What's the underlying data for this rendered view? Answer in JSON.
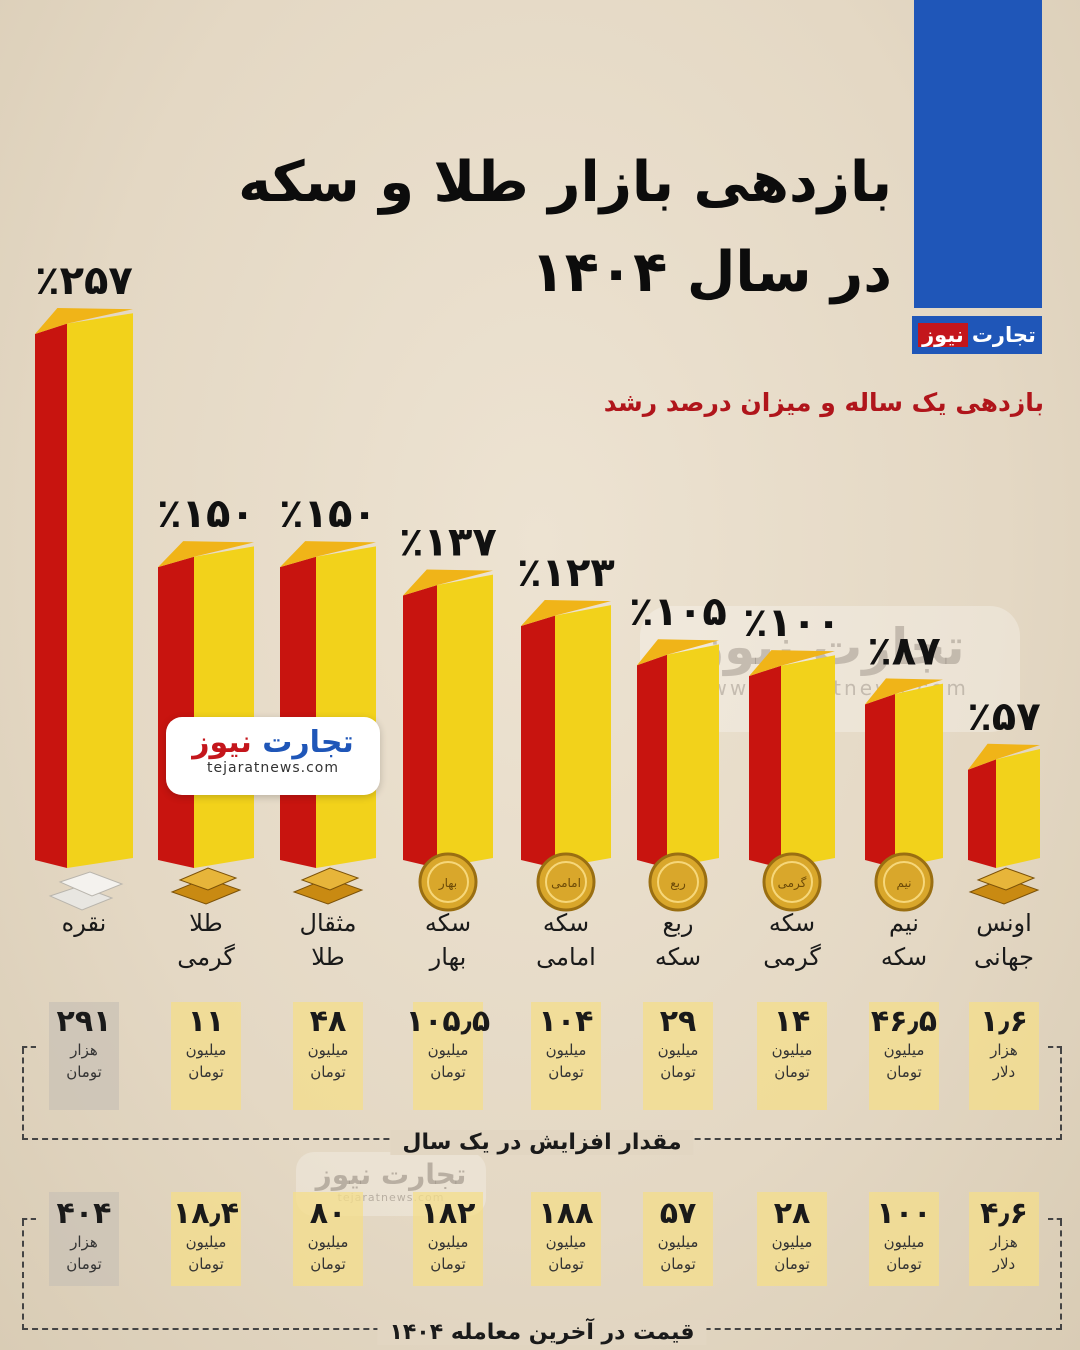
{
  "title_line1": "بازدهی بازار طلا و سکه",
  "title_line2": "در سال ۱۴۰۴",
  "brand": {
    "part1": "تجارت",
    "part2": "نیوز",
    "url": "www.tejaratnews.com",
    "url_short": "tejaratnews.com"
  },
  "subtitle": "بازدهی یک ساله و میزان درصد رشد",
  "colors": {
    "bar_front": "#f2d21b",
    "bar_side": "#c8140f",
    "bar_top": "#f0b418",
    "silver_column": "#c9c2b6",
    "gold_column": "#f4dd8a",
    "brand_blue": "#1f56b8",
    "brand_red": "#c4161c"
  },
  "chart_data": {
    "type": "bar",
    "title": "بازدهی بازار طلا و سکه در سال ۱۴۰۴",
    "subtitle": "بازدهی یک ساله و میزان درصد رشد",
    "categories": [
      "نقره",
      "طلا گرمی",
      "مثقال طلا",
      "سکه بهار",
      "سکه امامی",
      "ربع سکه",
      "سکه گرمی",
      "نیم سکه",
      "اونس جهانی"
    ],
    "values": [
      257,
      150,
      150,
      137,
      123,
      105,
      100,
      87,
      57
    ],
    "unit": "%",
    "ylim": [
      0,
      257
    ],
    "legend": "none",
    "grid": false
  },
  "items": [
    {
      "line1": "نقره",
      "line2": "",
      "pct": "٪۲۵۷",
      "coin": "",
      "inc": "۲۹۱",
      "inc_u1": "هزار",
      "inc_u2": "تومان",
      "price": "۴۰۴",
      "price_u1": "هزار",
      "price_u2": "تومان",
      "icon": "silver-bars-icon"
    },
    {
      "line1": "طلا",
      "line2": "گرمی",
      "pct": "٪۱۵۰",
      "coin": "",
      "inc": "۱۱",
      "inc_u1": "میلیون",
      "inc_u2": "تومان",
      "price": "۱۸٫۴",
      "price_u1": "میلیون",
      "price_u2": "تومان",
      "icon": "gold-bar-icon"
    },
    {
      "line1": "مثقال",
      "line2": "طلا",
      "pct": "٪۱۵۰",
      "coin": "",
      "inc": "۴۸",
      "inc_u1": "میلیون",
      "inc_u2": "تومان",
      "price": "۸۰",
      "price_u1": "میلیون",
      "price_u2": "تومان",
      "icon": "gold-bars-icon"
    },
    {
      "line1": "سکه",
      "line2": "بهار",
      "pct": "٪۱۳۷",
      "coin": "بهار",
      "inc": "۱۰۵٫۵",
      "inc_u1": "میلیون",
      "inc_u2": "تومان",
      "price": "۱۸۲",
      "price_u1": "میلیون",
      "price_u2": "تومان",
      "icon": "coin-icon"
    },
    {
      "line1": "سکه",
      "line2": "امامی",
      "pct": "٪۱۲۳",
      "coin": "امامی",
      "inc": "۱۰۴",
      "inc_u1": "میلیون",
      "inc_u2": "تومان",
      "price": "۱۸۸",
      "price_u1": "میلیون",
      "price_u2": "تومان",
      "icon": "coin-icon"
    },
    {
      "line1": "ربع",
      "line2": "سکه",
      "pct": "٪۱۰۵",
      "coin": "ربع",
      "inc": "۲۹",
      "inc_u1": "میلیون",
      "inc_u2": "تومان",
      "price": "۵۷",
      "price_u1": "میلیون",
      "price_u2": "تومان",
      "icon": "coin-icon"
    },
    {
      "line1": "سکه",
      "line2": "گرمی",
      "pct": "٪۱۰۰",
      "coin": "گرمی",
      "inc": "۱۴",
      "inc_u1": "میلیون",
      "inc_u2": "تومان",
      "price": "۲۸",
      "price_u1": "میلیون",
      "price_u2": "تومان",
      "icon": "coin-icon"
    },
    {
      "line1": "نیم",
      "line2": "سکه",
      "pct": "٪۸۷",
      "coin": "نیم",
      "inc": "۴۶٫۵",
      "inc_u1": "میلیون",
      "inc_u2": "تومان",
      "price": "۱۰۰",
      "price_u1": "میلیون",
      "price_u2": "تومان",
      "icon": "coin-icon"
    },
    {
      "line1": "اونس",
      "line2": "جهانی",
      "pct": "٪۵۷",
      "coin": "",
      "inc": "۱٫۶",
      "inc_u1": "هزار",
      "inc_u2": "دلار",
      "price": "۴٫۶",
      "price_u1": "هزار",
      "price_u2": "دلار",
      "icon": "gold-bars-icon"
    }
  ],
  "box1_caption": "مقدار افزایش در یک سال",
  "box2_caption": "قیمت در آخرین معامله ۱۴۰۴"
}
